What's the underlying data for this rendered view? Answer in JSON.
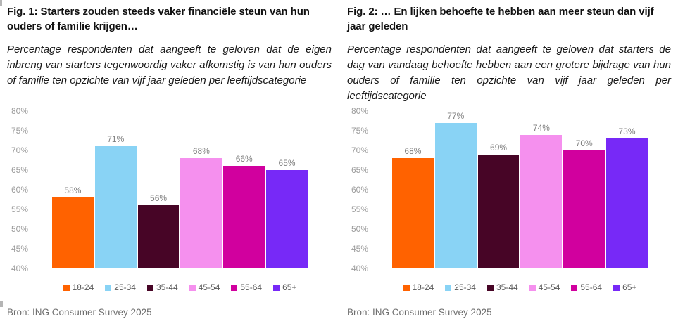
{
  "figures": [
    {
      "title": "Fig. 1: Starters zouden steeds vaker financiële steun van hun ouders of familie krijgen…",
      "subtitle_parts": [
        {
          "text": "Percentage respondenten dat aangeeft te geloven dat de eigen inbreng van starters tegenwoordig ",
          "underline": false
        },
        {
          "text": "vaker afkomstig",
          "underline": true
        },
        {
          "text": " is van hun ouders of familie ten opzichte van vijf jaar geleden per leeftijdscategorie",
          "underline": false
        }
      ],
      "source": "Bron: ING Consumer Survey 2025"
    },
    {
      "title": "Fig. 2: … En lijken behoefte te hebben aan meer steun dan vijf jaar geleden",
      "subtitle_parts": [
        {
          "text": "Percentage respondenten dat aangeeft te geloven dat starters de dag van vandaag ",
          "underline": false
        },
        {
          "text": "behoefte hebben",
          "underline": true
        },
        {
          "text": " aan ",
          "underline": false
        },
        {
          "text": "een grotere bijdrage",
          "underline": true
        },
        {
          "text": " van hun ouders of familie ten opzichte van vijf jaar geleden per leeftijdscategorie",
          "underline": false
        }
      ],
      "source": "Bron: ING Consumer Survey 2025"
    }
  ],
  "chart_data": [
    {
      "type": "bar",
      "title": "Fig. 1: Starters zouden steeds vaker financiële steun van hun ouders of familie krijgen…",
      "categories": [
        "18-24",
        "25-34",
        "35-44",
        "45-54",
        "55-64",
        "65+"
      ],
      "values": [
        58,
        71,
        56,
        68,
        66,
        65
      ],
      "value_labels": [
        "58%",
        "71%",
        "56%",
        "68%",
        "66%",
        "65%"
      ],
      "colors": [
        "#FF6200",
        "#89D3F5",
        "#470526",
        "#F590EE",
        "#D1009E",
        "#7729F7"
      ],
      "xlabel": "",
      "ylabel": "",
      "ylim": [
        40,
        80
      ],
      "yticks": [
        "80%",
        "75%",
        "70%",
        "65%",
        "60%",
        "55%",
        "50%",
        "45%",
        "40%"
      ],
      "grid": false,
      "legend_position": "bottom"
    },
    {
      "type": "bar",
      "title": "Fig. 2: … En lijken behoefte te hebben aan meer steun dan vijf jaar geleden",
      "categories": [
        "18-24",
        "25-34",
        "35-44",
        "45-54",
        "55-64",
        "65+"
      ],
      "values": [
        68,
        77,
        69,
        74,
        70,
        73
      ],
      "value_labels": [
        "68%",
        "77%",
        "69%",
        "74%",
        "70%",
        "73%"
      ],
      "colors": [
        "#FF6200",
        "#89D3F5",
        "#470526",
        "#F590EE",
        "#D1009E",
        "#7729F7"
      ],
      "xlabel": "",
      "ylabel": "",
      "ylim": [
        40,
        80
      ],
      "yticks": [
        "80%",
        "75%",
        "70%",
        "65%",
        "60%",
        "55%",
        "50%",
        "45%",
        "40%"
      ],
      "grid": false,
      "legend_position": "bottom"
    }
  ]
}
